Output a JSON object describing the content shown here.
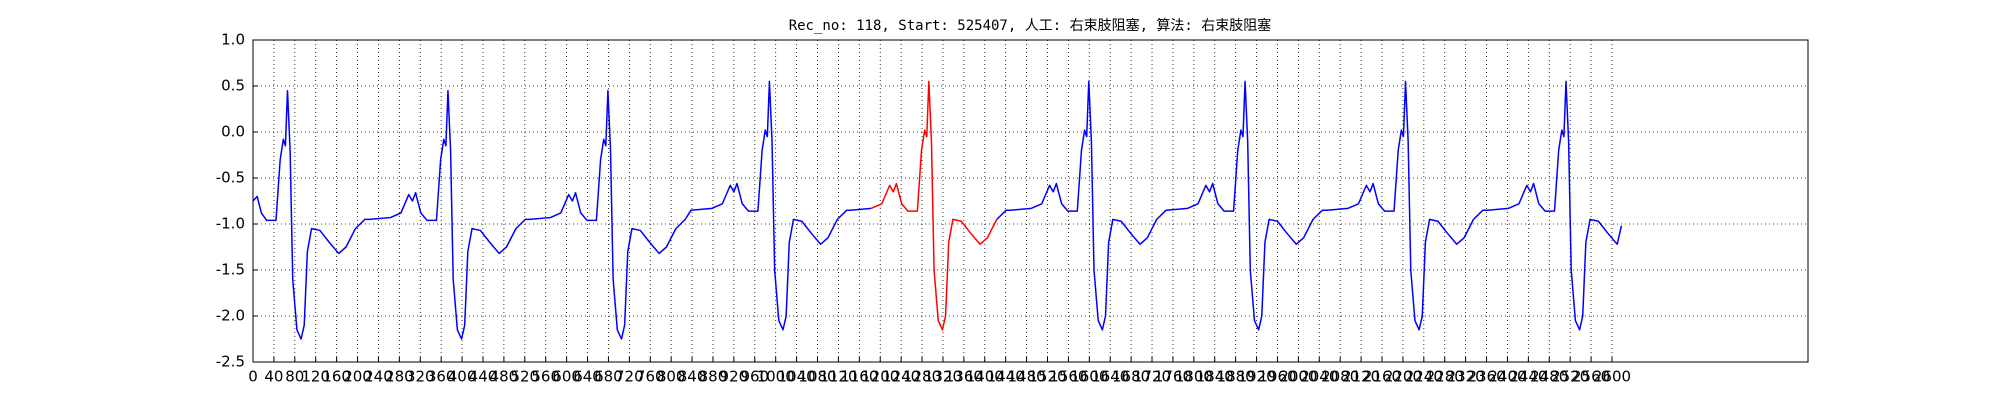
{
  "chart_data": {
    "type": "line",
    "title": "Rec_no: 118, Start: 525407, 人工: 右束肢阻塞, 算法: 右束肢阻塞",
    "xlim": [
      0,
      2975
    ],
    "xticks": [
      0,
      40,
      80,
      120,
      160,
      200,
      240,
      280,
      320,
      360,
      400,
      440,
      480,
      520,
      560,
      600,
      640,
      680,
      720,
      760,
      800,
      840,
      880,
      920,
      960,
      1000,
      1040,
      1080,
      1120,
      1160,
      1200,
      1240,
      1280,
      1320,
      1360,
      1400,
      1440,
      1480,
      1520,
      1560,
      1600,
      1640,
      1680,
      1720,
      1760,
      1800,
      1840,
      1880,
      1920,
      1960,
      2000,
      2040,
      2080,
      2120,
      2160,
      2200,
      2240,
      2280,
      2320,
      2360,
      2400,
      2440,
      2480,
      2520,
      2560,
      2600
    ],
    "ylim": [
      -2.5,
      1.0
    ],
    "yticks": [
      -2.5,
      {
        "value": -2.0,
        "label": "-2.0"
      },
      -1.5,
      {
        "value": -1.0,
        "label": "-1.0"
      },
      -0.5,
      {
        "value": 0,
        "label": "0.0"
      },
      0.5,
      {
        "value": 1.0,
        "label": "1.0"
      }
    ],
    "grid": true,
    "series": [
      {
        "color": "#0000ff",
        "x": [
          0,
          8,
          16,
          26,
          44,
          52,
          58,
          62,
          66,
          71,
          76,
          84,
          92,
          98,
          104,
          112,
          128,
          146,
          164,
          178,
          196,
          214,
          223,
          263,
          283,
          298,
          305,
          311,
          321,
          333,
          351,
          359,
          365,
          369,
          373,
          378,
          383,
          391,
          399,
          405,
          411,
          419,
          435,
          453,
          471,
          485,
          503,
          521,
          529,
          569,
          589,
          604,
          611,
          617,
          627,
          639,
          657,
          665,
          671,
          675,
          679,
          684,
          689,
          697,
          705,
          711,
          717,
          725,
          741,
          759,
          777,
          791,
          809,
          827,
          838,
          878,
          898,
          913,
          920,
          926,
          936,
          948,
          966,
          974,
          980,
          984,
          988,
          993,
          998,
          1006,
          1014,
          1020,
          1026,
          1034,
          1050,
          1068,
          1086,
          1100,
          1118,
          1136,
          1143,
          1183,
          1203,
          1218,
          1225,
          1231,
          1241,
          1253,
          1271,
          1279,
          1285,
          1289,
          1293,
          1298,
          1303,
          1311,
          1319,
          1325,
          1331,
          1339,
          1355,
          1373,
          1391,
          1405,
          1423,
          1441,
          1449,
          1489,
          1509,
          1524,
          1531,
          1537,
          1547,
          1559,
          1577,
          1585,
          1591,
          1595,
          1599,
          1604,
          1609,
          1617,
          1625,
          1631,
          1637,
          1645,
          1661,
          1679,
          1697,
          1711,
          1729,
          1747,
          1748,
          1788,
          1808,
          1823,
          1830,
          1836,
          1846,
          1858,
          1876,
          1884,
          1890,
          1894,
          1898,
          1903,
          1908,
          1916,
          1924,
          1930,
          1936,
          1944,
          1960,
          1978,
          1996,
          2010,
          2028,
          2046,
          2055,
          2095,
          2115,
          2130,
          2137,
          2143,
          2153,
          2165,
          2183,
          2191,
          2197,
          2201,
          2205,
          2210,
          2215,
          2223,
          2231,
          2237,
          2243,
          2251,
          2267,
          2285,
          2303,
          2317,
          2335,
          2353,
          2362,
          2402,
          2422,
          2437,
          2444,
          2450,
          2460,
          2472,
          2490,
          2498,
          2504,
          2508,
          2512,
          2517,
          2522,
          2530,
          2538,
          2544,
          2550,
          2558,
          2574,
          2592,
          2610,
          2618
        ],
        "values": [
          -0.75,
          -0.7,
          -0.88,
          -0.96,
          -0.96,
          -0.3,
          -0.08,
          -0.15,
          0.45,
          -0.2,
          -1.6,
          -2.15,
          -2.25,
          -2.1,
          -1.3,
          -1.05,
          -1.07,
          -1.2,
          -1.32,
          -1.25,
          -1.05,
          -0.95,
          -0.95,
          -0.93,
          -0.88,
          -0.68,
          -0.75,
          -0.66,
          -0.88,
          -0.96,
          -0.96,
          -0.3,
          -0.08,
          -0.15,
          0.45,
          -0.2,
          -1.6,
          -2.15,
          -2.25,
          -2.1,
          -1.3,
          -1.05,
          -1.07,
          -1.2,
          -1.32,
          -1.25,
          -1.05,
          -0.95,
          -0.95,
          -0.93,
          -0.88,
          -0.68,
          -0.75,
          -0.66,
          -0.88,
          -0.96,
          -0.96,
          -0.3,
          -0.08,
          -0.15,
          0.45,
          -0.2,
          -1.6,
          -2.15,
          -2.25,
          -2.1,
          -1.3,
          -1.05,
          -1.07,
          -1.2,
          -1.32,
          -1.25,
          -1.05,
          -0.95,
          -0.85,
          -0.83,
          -0.78,
          -0.58,
          -0.65,
          -0.56,
          -0.78,
          -0.86,
          -0.86,
          -0.2,
          0.02,
          -0.05,
          0.55,
          -0.1,
          -1.5,
          -2.05,
          -2.15,
          -2.0,
          -1.2,
          -0.95,
          -0.97,
          -1.1,
          -1.22,
          -1.15,
          -0.95,
          -0.85,
          -0.85,
          -0.83,
          null,
          null,
          null,
          null,
          null,
          null,
          null,
          null,
          null,
          null,
          null,
          null,
          null,
          null,
          null,
          null,
          null,
          null,
          null,
          null,
          null,
          null,
          -0.95,
          -0.85,
          -0.85,
          -0.83,
          -0.78,
          -0.58,
          -0.65,
          -0.56,
          -0.78,
          -0.86,
          -0.86,
          -0.2,
          0.02,
          -0.05,
          0.55,
          -0.1,
          -1.5,
          -2.05,
          -2.15,
          -2.0,
          -1.2,
          -0.95,
          -0.97,
          -1.1,
          -1.22,
          -1.15,
          -0.95,
          -0.85,
          -0.85,
          -0.83,
          -0.78,
          -0.58,
          -0.65,
          -0.56,
          -0.78,
          -0.86,
          -0.86,
          -0.2,
          0.02,
          -0.05,
          0.55,
          -0.1,
          -1.5,
          -2.05,
          -2.15,
          -2.0,
          -1.2,
          -0.95,
          -0.97,
          -1.1,
          -1.22,
          -1.15,
          -0.95,
          -0.85,
          -0.85,
          -0.83,
          -0.78,
          -0.58,
          -0.65,
          -0.56,
          -0.78,
          -0.86,
          -0.86,
          -0.2,
          0.02,
          -0.05,
          0.55,
          -0.1,
          -1.5,
          -2.05,
          -2.15,
          -2.0,
          -1.2,
          -0.95,
          -0.97,
          -1.1,
          -1.22,
          -1.15,
          -0.95,
          -0.85,
          -0.85,
          -0.83,
          -0.78,
          -0.58,
          -0.65,
          -0.56,
          -0.78,
          -0.86,
          -0.86,
          -0.2,
          0.02,
          -0.05,
          0.55,
          -0.1,
          -1.5,
          -2.05,
          -2.15,
          -2.0,
          -1.2,
          -0.95,
          -0.97,
          -1.1,
          -1.22,
          -1.02
        ]
      },
      {
        "color": "#ff0000",
        "x": [
          1183,
          1203,
          1218,
          1225,
          1231,
          1241,
          1253,
          1271,
          1279,
          1285,
          1289,
          1293,
          1298,
          1303,
          1311,
          1319,
          1325,
          1331,
          1339,
          1355,
          1373,
          1391,
          1405,
          1423
        ],
        "values": [
          -0.83,
          -0.78,
          -0.58,
          -0.65,
          -0.56,
          -0.78,
          -0.86,
          -0.86,
          -0.2,
          0.02,
          -0.05,
          0.55,
          -0.1,
          -1.5,
          -2.05,
          -2.15,
          -2.0,
          -1.2,
          -0.95,
          -0.97,
          -1.1,
          -1.22,
          -1.15,
          -0.95
        ]
      }
    ]
  }
}
